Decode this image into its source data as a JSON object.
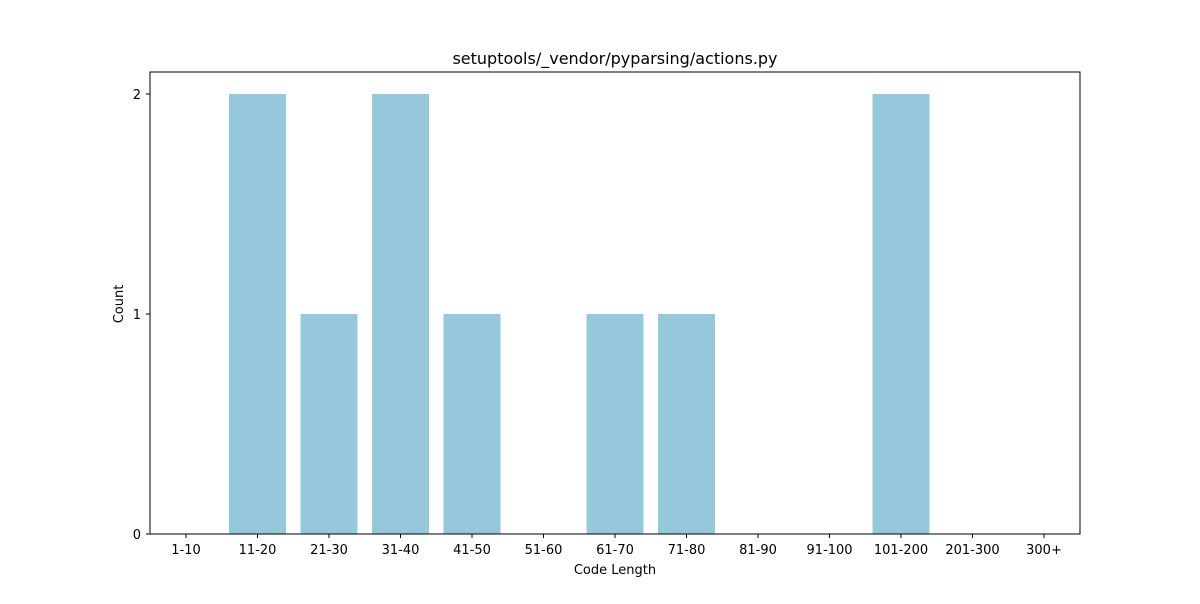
{
  "chart_data": {
    "type": "bar",
    "title": "setuptools/_vendor/pyparsing/actions.py",
    "xlabel": "Code Length",
    "ylabel": "Count",
    "categories": [
      "1-10",
      "11-20",
      "21-30",
      "31-40",
      "41-50",
      "51-60",
      "61-70",
      "71-80",
      "81-90",
      "91-100",
      "101-200",
      "201-300",
      "300+"
    ],
    "values": [
      0,
      2,
      1,
      2,
      1,
      0,
      1,
      1,
      0,
      0,
      2,
      0,
      0
    ],
    "yticks": [
      "0",
      "1",
      "2"
    ],
    "ylim": [
      0,
      2.1
    ],
    "grid": false,
    "bar_color": "#96c8dc"
  }
}
